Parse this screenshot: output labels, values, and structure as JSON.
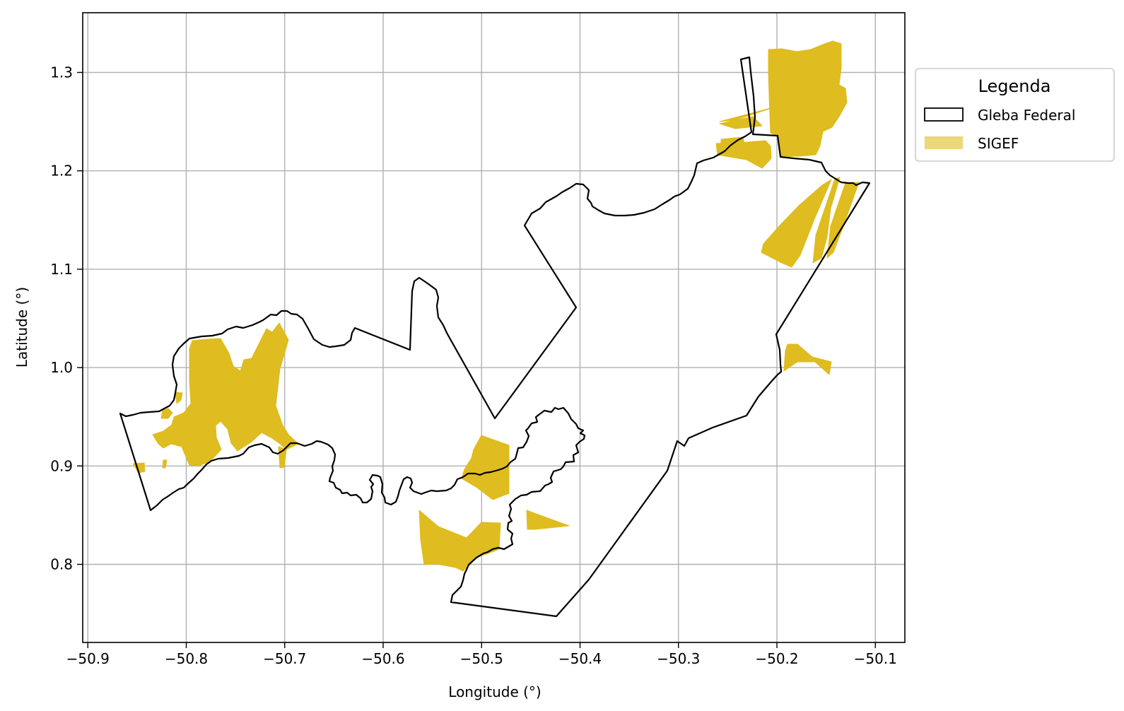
{
  "chart_data": {
    "type": "map",
    "xlabel": "Longitude (°)",
    "ylabel": "Latitude (°)",
    "xlim": [
      -50.9,
      -50.07
    ],
    "ylim": [
      0.72,
      1.36
    ],
    "grid": true,
    "x_ticks": [
      "−50.9",
      "−50.8",
      "−50.7",
      "−50.6",
      "−50.5",
      "−50.4",
      "−50.3",
      "−50.2",
      "−50.1"
    ],
    "y_ticks": [
      "0.8",
      "0.9",
      "1.0",
      "1.1",
      "1.2",
      "1.3"
    ],
    "x_tick_values": [
      -50.9,
      -50.8,
      -50.7,
      -50.6,
      -50.5,
      -50.4,
      -50.3,
      -50.2,
      -50.1
    ],
    "y_tick_values": [
      0.8,
      0.9,
      1.0,
      1.1,
      1.2,
      1.3
    ],
    "legend": {
      "title": "Legenda",
      "position": "outside-right",
      "items": [
        {
          "label": "Gleba Federal",
          "style": "outline",
          "color": "#000000"
        },
        {
          "label": "SIGEF",
          "style": "fill",
          "color": "#dfbc1f"
        }
      ]
    },
    "colors": {
      "sigef": "#dfbc1f",
      "gleba": "#000000",
      "grid": "#b0b0b0"
    }
  }
}
